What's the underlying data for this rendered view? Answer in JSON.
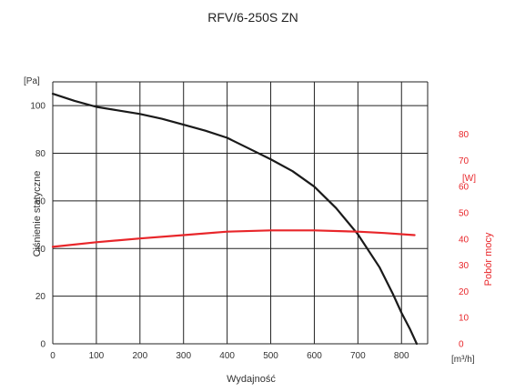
{
  "chart_data": {
    "type": "line",
    "title": "RFV/6-250S ZN",
    "xlabel": "Wydajność",
    "x_unit": "[m³/h]",
    "xlim": [
      0,
      860
    ],
    "x_ticks": [
      0,
      100,
      200,
      300,
      400,
      500,
      600,
      700,
      800
    ],
    "y_left": {
      "label": "Ciśnienie statyczne",
      "unit": "[Pa]",
      "ylim": [
        0,
        110
      ],
      "ticks": [
        0,
        20,
        40,
        60,
        80,
        100
      ]
    },
    "y_right": {
      "label": "Pobór mocy",
      "unit": "[W]",
      "ylim": [
        0,
        100
      ],
      "ticks": [
        0,
        10,
        20,
        30,
        40,
        50,
        60,
        70,
        80
      ]
    },
    "grid": true,
    "series": [
      {
        "axis": "left",
        "color": "#1a1a1a",
        "x": [
          0,
          50,
          100,
          150,
          200,
          250,
          300,
          350,
          400,
          450,
          500,
          550,
          600,
          650,
          700,
          750,
          780,
          800,
          820,
          835
        ],
        "y": [
          105,
          102,
          99.5,
          98,
          96.5,
          94.5,
          92,
          89.5,
          86.5,
          82,
          77.5,
          72.5,
          66,
          57,
          46,
          32,
          21,
          13,
          6,
          0
        ]
      },
      {
        "axis": "right",
        "color": "#e8262a",
        "x": [
          0,
          100,
          200,
          300,
          400,
          500,
          600,
          700,
          760,
          830
        ],
        "y": [
          37,
          38.8,
          40.2,
          41.5,
          42.8,
          43.3,
          43.3,
          42.8,
          42.3,
          41.5
        ]
      }
    ]
  }
}
